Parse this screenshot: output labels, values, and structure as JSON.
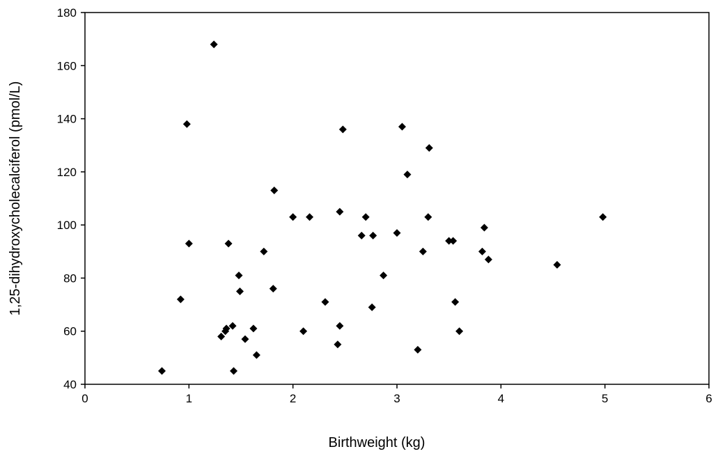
{
  "chart_data": {
    "type": "scatter",
    "title": "",
    "xlabel": "Birthweight (kg)",
    "ylabel": "1,25-dihydroxycholecalciferol (pmol/L)",
    "xlim": [
      0,
      6
    ],
    "ylim": [
      40,
      180
    ],
    "xticks": [
      0,
      1,
      2,
      3,
      4,
      5,
      6
    ],
    "yticks": [
      40,
      60,
      80,
      100,
      120,
      140,
      160,
      180
    ],
    "grid": false,
    "marker": "diamond",
    "marker_color": "#000000",
    "series": [
      {
        "points": [
          [
            0.74,
            45
          ],
          [
            0.92,
            72
          ],
          [
            0.98,
            138
          ],
          [
            1.0,
            93
          ],
          [
            1.24,
            168
          ],
          [
            1.31,
            58
          ],
          [
            1.35,
            60
          ],
          [
            1.36,
            61
          ],
          [
            1.38,
            93
          ],
          [
            1.42,
            62
          ],
          [
            1.43,
            45
          ],
          [
            1.48,
            81
          ],
          [
            1.49,
            75
          ],
          [
            1.54,
            57
          ],
          [
            1.62,
            61
          ],
          [
            1.65,
            51
          ],
          [
            1.72,
            90
          ],
          [
            1.81,
            76
          ],
          [
            1.82,
            113
          ],
          [
            2.0,
            103
          ],
          [
            2.1,
            60
          ],
          [
            2.16,
            103
          ],
          [
            2.31,
            71
          ],
          [
            2.43,
            55
          ],
          [
            2.45,
            105
          ],
          [
            2.45,
            62
          ],
          [
            2.48,
            136
          ],
          [
            2.66,
            96
          ],
          [
            2.7,
            103
          ],
          [
            2.76,
            69
          ],
          [
            2.77,
            96
          ],
          [
            2.87,
            81
          ],
          [
            3.0,
            97
          ],
          [
            3.05,
            137
          ],
          [
            3.1,
            119
          ],
          [
            3.2,
            53
          ],
          [
            3.25,
            90
          ],
          [
            3.3,
            103
          ],
          [
            3.31,
            129
          ],
          [
            3.5,
            94
          ],
          [
            3.54,
            94
          ],
          [
            3.56,
            71
          ],
          [
            3.6,
            60
          ],
          [
            3.82,
            90
          ],
          [
            3.84,
            99
          ],
          [
            3.88,
            87
          ],
          [
            4.54,
            85
          ],
          [
            4.98,
            103
          ]
        ]
      }
    ]
  }
}
